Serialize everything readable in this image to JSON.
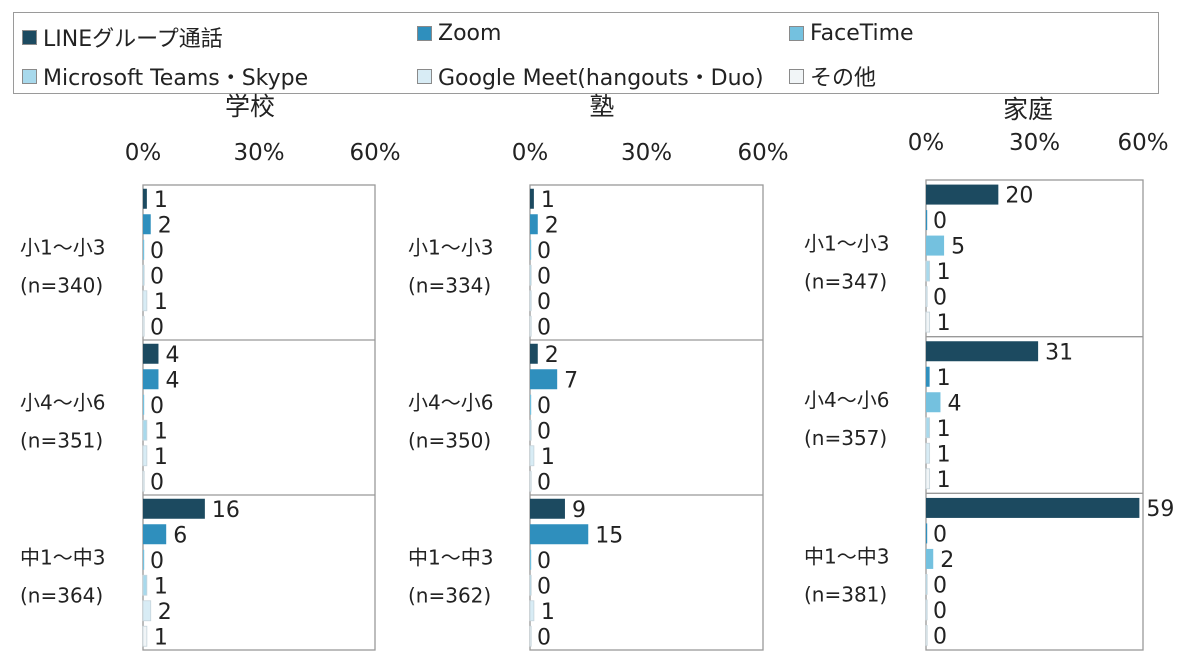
{
  "legend": {
    "items": [
      {
        "label": "LINEグループ通話",
        "color": "#1c4a60"
      },
      {
        "label": "Zoom",
        "color": "#2f8fbd"
      },
      {
        "label": "FaceTime",
        "color": "#74c1df"
      },
      {
        "label": "Microsoft Teams・Skype",
        "color": "#a8d9ec"
      },
      {
        "label": "Google Meet(hangouts・Duo)",
        "color": "#d8ecf5"
      },
      {
        "label": "その他",
        "color": "#f1f5f7"
      }
    ]
  },
  "chart_data": [
    {
      "type": "bar",
      "orientation": "horizontal",
      "title": "学校",
      "xlim": [
        0,
        60
      ],
      "ticks": [
        "0%",
        "30%",
        "60%"
      ],
      "groups": [
        {
          "label": "小1～小3",
          "n": "(n=340)",
          "values": [
            1,
            2,
            0,
            0,
            1,
            0
          ]
        },
        {
          "label": "小4～小6",
          "n": "(n=351)",
          "values": [
            4,
            4,
            0,
            1,
            1,
            0
          ]
        },
        {
          "label": "中1～中3",
          "n": "(n=364)",
          "values": [
            16,
            6,
            0,
            1,
            2,
            1
          ]
        }
      ]
    },
    {
      "type": "bar",
      "orientation": "horizontal",
      "title": "塾",
      "xlim": [
        0,
        60
      ],
      "ticks": [
        "0%",
        "30%",
        "60%"
      ],
      "groups": [
        {
          "label": "小1～小3",
          "n": "(n=334)",
          "values": [
            1,
            2,
            0,
            0,
            0,
            0
          ]
        },
        {
          "label": "小4～小6",
          "n": "(n=350)",
          "values": [
            2,
            7,
            0,
            0,
            1,
            0
          ]
        },
        {
          "label": "中1～中3",
          "n": "(n=362)",
          "values": [
            9,
            15,
            0,
            0,
            1,
            0
          ]
        }
      ]
    },
    {
      "type": "bar",
      "orientation": "horizontal",
      "title": "家庭",
      "xlim": [
        0,
        60
      ],
      "ticks": [
        "0%",
        "30%",
        "60%"
      ],
      "groups": [
        {
          "label": "小1～小3",
          "n": "(n=347)",
          "values": [
            20,
            0,
            5,
            1,
            0,
            1
          ]
        },
        {
          "label": "小4～小6",
          "n": "(n=357)",
          "values": [
            31,
            1,
            4,
            1,
            1,
            1
          ]
        },
        {
          "label": "中1～中3",
          "n": "(n=381)",
          "values": [
            59,
            0,
            2,
            0,
            0,
            0
          ]
        }
      ]
    }
  ]
}
